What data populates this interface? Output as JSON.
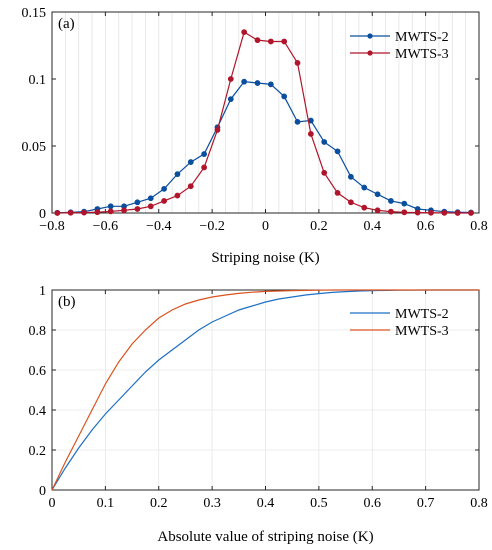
{
  "chart_data": [
    {
      "type": "line",
      "panel_label": "(a)",
      "xlabel": "Striping noise (K)",
      "ylabel": "",
      "xlim": [
        -0.8,
        0.8
      ],
      "ylim": [
        0,
        0.15
      ],
      "xticks": [
        -0.8,
        -0.6,
        -0.4,
        -0.2,
        0,
        0.2,
        0.4,
        0.6,
        0.8
      ],
      "xtick_labels": [
        "−0.8",
        "−0.6",
        "−0.4",
        "−0.2",
        "0",
        "0.2",
        "0.4",
        "0.6",
        "0.8"
      ],
      "yticks": [
        0,
        0.05,
        0.1,
        0.15
      ],
      "ytick_labels": [
        "0",
        "0.05",
        "0.1",
        "0.15"
      ],
      "grid": "vertical",
      "legend": "top-right",
      "markers": true,
      "x": [
        -0.78,
        -0.73,
        -0.68,
        -0.63,
        -0.58,
        -0.53,
        -0.48,
        -0.43,
        -0.38,
        -0.33,
        -0.28,
        -0.23,
        -0.18,
        -0.13,
        -0.08,
        -0.03,
        0.02,
        0.07,
        0.12,
        0.17,
        0.22,
        0.27,
        0.32,
        0.37,
        0.42,
        0.47,
        0.52,
        0.57,
        0.62,
        0.67,
        0.72,
        0.77
      ],
      "series": [
        {
          "name": "MWTS-2",
          "color": "#0a4f9e",
          "values": [
            0.0002,
            0.0005,
            0.001,
            0.003,
            0.005,
            0.005,
            0.008,
            0.011,
            0.018,
            0.029,
            0.038,
            0.044,
            0.064,
            0.085,
            0.098,
            0.097,
            0.096,
            0.087,
            0.068,
            0.069,
            0.053,
            0.046,
            0.027,
            0.019,
            0.014,
            0.009,
            0.007,
            0.003,
            0.002,
            0.001,
            0.0006,
            0.0004
          ]
        },
        {
          "name": "MWTS-3",
          "color": "#b0152b",
          "values": [
            0.0,
            0.0002,
            0.0003,
            0.0006,
            0.0012,
            0.002,
            0.003,
            0.005,
            0.009,
            0.013,
            0.02,
            0.034,
            0.062,
            0.1,
            0.135,
            0.129,
            0.128,
            0.128,
            0.112,
            0.059,
            0.03,
            0.015,
            0.008,
            0.004,
            0.002,
            0.001,
            0.0005,
            0.0003,
            0.0002,
            0.0001,
            0.0,
            0.0
          ]
        }
      ]
    },
    {
      "type": "line",
      "panel_label": "(b)",
      "xlabel": "Absolute value of striping noise (K)",
      "ylabel": "",
      "xlim": [
        0,
        0.8
      ],
      "ylim": [
        0,
        1
      ],
      "xticks": [
        0,
        0.1,
        0.2,
        0.3,
        0.4,
        0.5,
        0.6,
        0.7,
        0.8
      ],
      "xtick_labels": [
        "0",
        "0.1",
        "0.2",
        "0.3",
        "0.4",
        "0.5",
        "0.6",
        "0.7",
        "0.8"
      ],
      "yticks": [
        0,
        0.2,
        0.4,
        0.6,
        0.8,
        1
      ],
      "ytick_labels": [
        "0",
        "0.2",
        "0.4",
        "0.6",
        "0.8",
        "1"
      ],
      "grid": "both",
      "legend": "top-right",
      "markers": false,
      "x": [
        0,
        0.025,
        0.05,
        0.075,
        0.1,
        0.125,
        0.15,
        0.175,
        0.2,
        0.225,
        0.25,
        0.275,
        0.3,
        0.325,
        0.35,
        0.375,
        0.4,
        0.425,
        0.45,
        0.475,
        0.5,
        0.525,
        0.55,
        0.575,
        0.6,
        0.65,
        0.7,
        0.75,
        0.8
      ],
      "series": [
        {
          "name": "MWTS-2",
          "color": "#1f6fc4",
          "values": [
            0,
            0.11,
            0.21,
            0.3,
            0.38,
            0.45,
            0.52,
            0.59,
            0.65,
            0.7,
            0.75,
            0.8,
            0.84,
            0.87,
            0.9,
            0.92,
            0.94,
            0.955,
            0.965,
            0.975,
            0.982,
            0.988,
            0.992,
            0.995,
            0.997,
            0.999,
            1.0,
            1.0,
            1.0
          ]
        },
        {
          "name": "MWTS-3",
          "color": "#d9531e",
          "values": [
            0,
            0.14,
            0.27,
            0.4,
            0.53,
            0.64,
            0.73,
            0.8,
            0.86,
            0.9,
            0.93,
            0.95,
            0.965,
            0.975,
            0.983,
            0.989,
            0.993,
            0.995,
            0.997,
            0.998,
            0.999,
            1.0,
            1.0,
            1.0,
            1.0,
            1.0,
            1.0,
            1.0,
            1.0
          ]
        }
      ]
    }
  ]
}
